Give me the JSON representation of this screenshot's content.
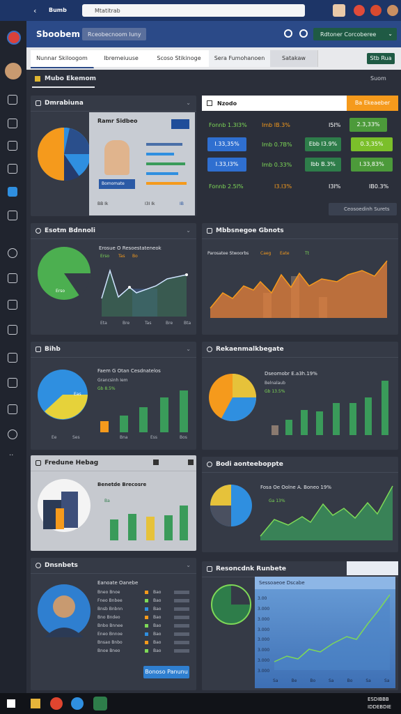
{
  "browser": {
    "tab": "Bumb",
    "url": "Mtatitrab"
  },
  "header": {
    "title": "Sboobem",
    "button": "Rceobecnoom Iuny",
    "dropdown": "Rdtoner Corcoberee"
  },
  "tabs": [
    "Nunnar Skiloogom",
    "Ibremeiuuse",
    "Scoso Stikinoge",
    "Sera Fumohanoen",
    "Satakaw"
  ],
  "tab_action": "Stb Rua",
  "section": {
    "title": "Mubo Ekemom",
    "more": "Suom"
  },
  "profile_card": {
    "title": "Dmrabiuna",
    "name": "Ramr Sidbeo",
    "badge": "Bomomate",
    "stats": [
      "BB Ik",
      "I3I Ik",
      "IB"
    ]
  },
  "table_card": {
    "title": "Nzodo",
    "action": "Ba Ekeaeber",
    "rows": [
      [
        "Fonnb 1.3I3%",
        "Imb IB.3%",
        "I5I%",
        "2.3,33%"
      ],
      [
        "I.33,35%",
        "Imb 0.7B%",
        "Ebb I3.9%",
        "0.3,35%"
      ],
      [
        "I.33,I3%",
        "Imb 0.33%",
        "Ibb B.3%",
        "I.33,83%"
      ],
      [
        "Fonnb 2.5I%",
        "I3.I3%",
        "I3I%",
        "IB0.3%"
      ]
    ],
    "dropdown": "Ceosoedinh Surets"
  },
  "line_card": {
    "title": "Esotm Bdnnoli",
    "subtitle": "Erosue O Resoestateneok",
    "legend": [
      "Erso",
      "Tas",
      "Bo"
    ],
    "pie_label": "Erso",
    "xlabels": [
      "Eta",
      "Bre",
      "Tas",
      "Bre",
      "Bta"
    ]
  },
  "area_card": {
    "title": "Mbbsnegoe Gbnots",
    "legend": [
      "Parosatee Stwoorbs",
      "Caeg",
      "Eate",
      "Tt"
    ]
  },
  "bar_card": {
    "title": "Bihb",
    "subtitle": "Faem G Otan Cesdnatelos",
    "sub2": "Grancsinh Iem",
    "stat": "Gb 8.5%",
    "pie_label": "Eas",
    "xlabels": [
      "Ee",
      "Ses",
      "Bna",
      "Ess",
      "Bos"
    ]
  },
  "pie_bar_card": {
    "title": "Rekaenmalkbegate",
    "subtitle": "Dseomobr E.a3h.19%",
    "sub2": "Belnalaub",
    "stat": "Gb 13.5%"
  },
  "light_card": {
    "title": "Fredune Hebag",
    "subtitle": "Benetde Brecosre",
    "stat": "Ba"
  },
  "mountain_card": {
    "title": "Bodi aonteeboppte",
    "subtitle": "Fosa Oe Oolne A. Boneo 19%",
    "stat": "Ga 13%"
  },
  "person_card": {
    "title": "Dnsnbets",
    "subtitle": "Eanoate Oanebe",
    "list": [
      [
        "Bneo Bnoe",
        "Bao"
      ],
      [
        "Fneo Bnbee",
        "Bao"
      ],
      [
        "Bnsb Bnbnn",
        "Bao"
      ],
      [
        "Bno Bndeo",
        "Bao"
      ],
      [
        "Bnbo Bnnee",
        "Bao"
      ],
      [
        "Eneo Bnnoe",
        "Bao"
      ],
      [
        "Bnsao Bnbo",
        "Bao"
      ],
      [
        "Bnoe Bneo",
        "Bao"
      ]
    ],
    "button": "Bonoso Panunu"
  },
  "trend_card": {
    "title": "Resoncdnk Runbete",
    "inset": "Sessoaeoe Dscabe",
    "yticks": [
      "3.00",
      "3.000",
      "3.000",
      "3.000",
      "3.000",
      "3.000",
      "3.000",
      "3.000"
    ],
    "xlabels": [
      "Sa",
      "Be",
      "Bo",
      "Sa",
      "Bo",
      "Sa",
      "Sa"
    ]
  },
  "taskbar": {
    "time": "ESDIBBB",
    "date": "IDDEBDIE"
  }
}
